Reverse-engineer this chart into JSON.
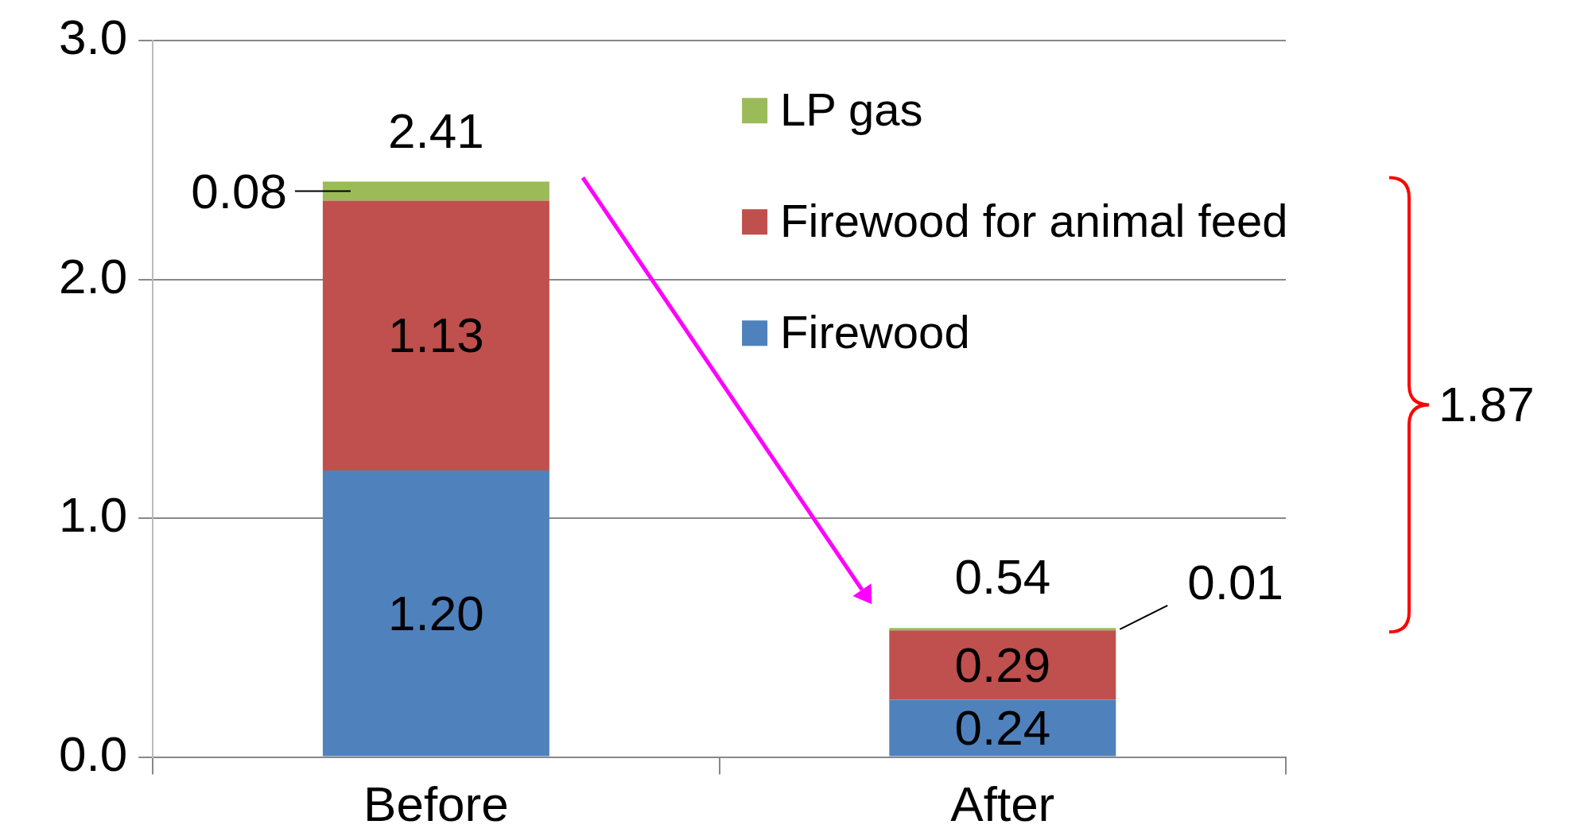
{
  "chart_data": {
    "type": "bar",
    "stacked": true,
    "categories": [
      "Before",
      "After"
    ],
    "series": [
      {
        "name": "Firewood",
        "color": "#4f81bd",
        "values": [
          1.2,
          0.24
        ],
        "value_labels": [
          "1.20",
          "0.24"
        ]
      },
      {
        "name": "Firewood for animal feed",
        "color": "#c0504d",
        "values": [
          1.13,
          0.29
        ],
        "value_labels": [
          "1.13",
          "0.29"
        ]
      },
      {
        "name": "LP gas",
        "color": "#9bbb59",
        "values": [
          0.08,
          0.01
        ],
        "value_labels": [
          "0.08",
          "0.01"
        ]
      }
    ],
    "ylim": [
      0,
      3
    ],
    "yticks": [
      {
        "value": 0,
        "label": "0.0"
      },
      {
        "value": 1,
        "label": "1.0"
      },
      {
        "value": 2,
        "label": "2.0"
      },
      {
        "value": 3,
        "label": "3.0"
      }
    ],
    "grid": "y",
    "legend": "top right",
    "totals": [
      "2.41",
      "0.54"
    ],
    "annotations": [
      "1.87"
    ]
  }
}
